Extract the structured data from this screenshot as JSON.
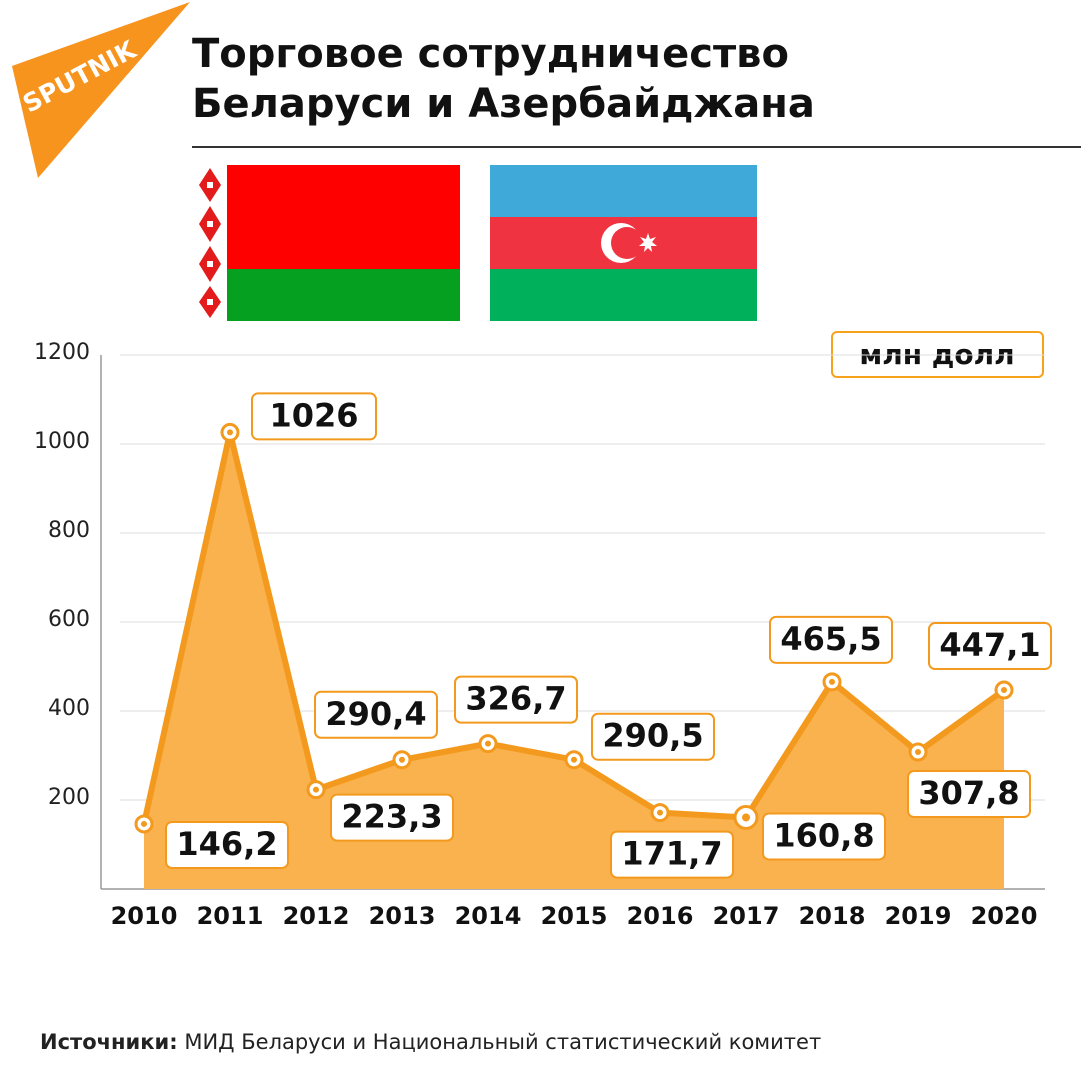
{
  "chart_data": {
    "type": "area",
    "title": [
      "Торговое сотрудничество",
      "Беларуси и Азербайджана"
    ],
    "logo": "SPUTNIK",
    "unit": "млн долл",
    "source_label": "Источники:",
    "source": "МИД Беларуси и Национальный статистический комитет",
    "categories": [
      "2010",
      "2011",
      "2012",
      "2013",
      "2014",
      "2015",
      "2016",
      "2017",
      "2018",
      "2019",
      "2020"
    ],
    "values": [
      146.2,
      1026,
      223.3,
      290.4,
      326.7,
      290.5,
      171.7,
      160.8,
      465.5,
      307.8,
      447.1
    ],
    "value_labels": [
      "146,2",
      "1026",
      "223,3",
      "290,4",
      "326,7",
      "290,5",
      "171,7",
      "160,8",
      "465,5",
      "307,8",
      "447,1"
    ],
    "color": "#f39a1e",
    "fill": "#f9b24e",
    "ylim": [
      0,
      1200
    ],
    "yticks": [
      200,
      400,
      600,
      800,
      1000,
      1200
    ],
    "grid": true
  }
}
